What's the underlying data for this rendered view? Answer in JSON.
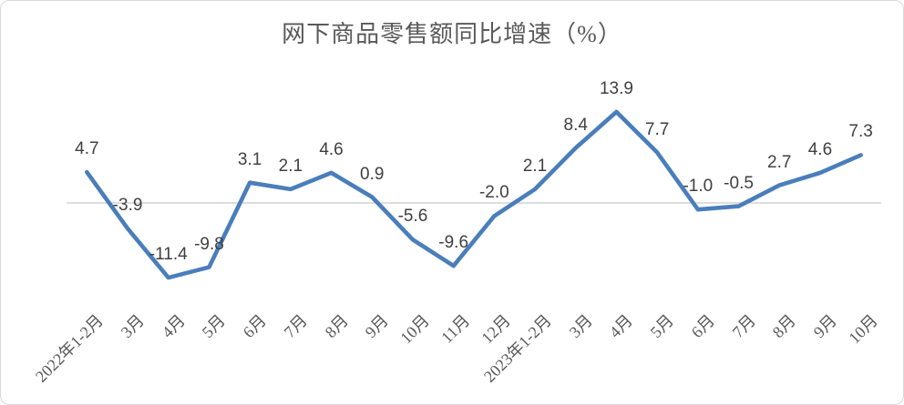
{
  "chart_data": {
    "type": "line",
    "title": "网下商品零售额同比增速（%）",
    "categories": [
      "2022年1-2月",
      "3月",
      "4月",
      "5月",
      "6月",
      "7月",
      "8月",
      "9月",
      "10月",
      "11月",
      "12月",
      "2023年1-2月",
      "3月",
      "4月",
      "5月",
      "6月",
      "7月",
      "8月",
      "9月",
      "10月"
    ],
    "values": [
      4.7,
      -3.9,
      -11.4,
      -9.8,
      3.1,
      2.1,
      4.6,
      0.9,
      -5.6,
      -9.6,
      -2.0,
      2.1,
      8.4,
      13.9,
      7.7,
      -1.0,
      -0.5,
      2.7,
      4.6,
      7.3
    ],
    "xlabel": "",
    "ylabel": "",
    "ylim": [
      -15,
      20
    ],
    "grid": "zero-line-only",
    "legend": "none",
    "data_labels": true,
    "data_label_decimals": 1,
    "x_label_rotation_deg": -45,
    "colors": {
      "line": "#4A7EBB",
      "data_label": "#404040",
      "axis_label": "#595959",
      "title": "#595959",
      "zero_gridline": "#c9c9c9",
      "frame_border": "#d9d9d9",
      "background": "#ffffff"
    }
  }
}
